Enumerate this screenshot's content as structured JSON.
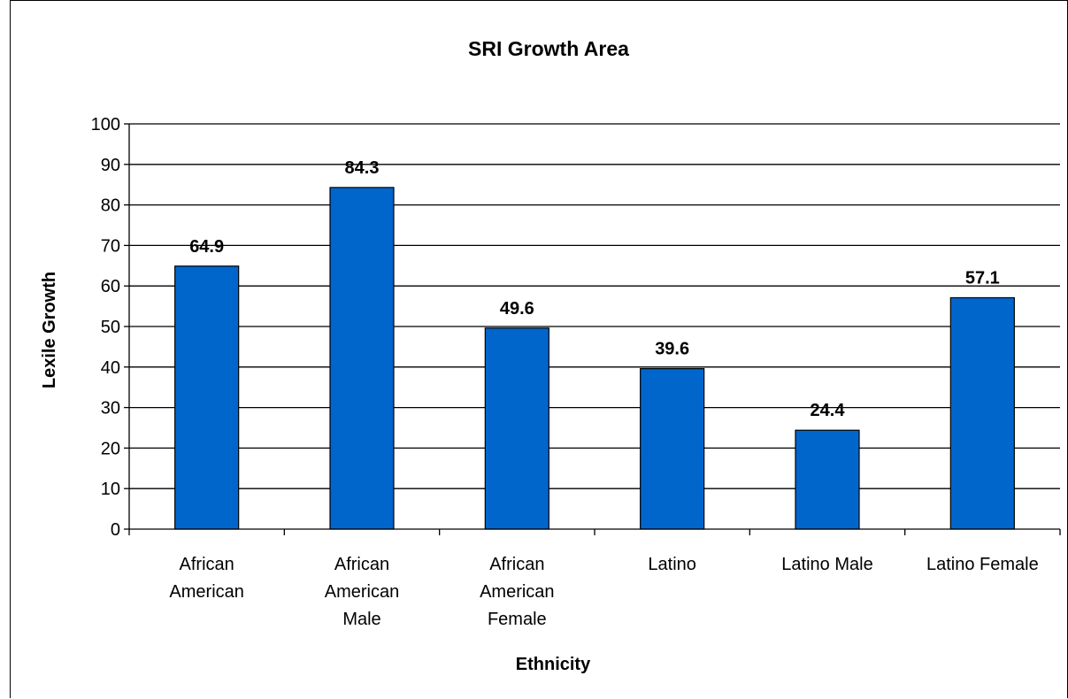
{
  "chart_data": {
    "type": "bar",
    "title": "SRI Growth Area",
    "xlabel": "Ethnicity",
    "ylabel": "Lexile Growth",
    "categories": [
      [
        "African",
        "American"
      ],
      [
        "African",
        "American",
        "Male"
      ],
      [
        "African",
        "American",
        "Female"
      ],
      [
        "Latino"
      ],
      [
        "Latino Male"
      ],
      [
        "Latino Female"
      ]
    ],
    "values": [
      64.9,
      84.3,
      49.6,
      39.6,
      24.4,
      57.1
    ],
    "data_labels": [
      "64.9",
      "84.3",
      "49.6",
      "39.6",
      "24.4",
      "57.1"
    ],
    "ylim": [
      0,
      100
    ],
    "yticks": [
      0,
      10,
      20,
      30,
      40,
      50,
      60,
      70,
      80,
      90,
      100
    ],
    "grid": true,
    "legend": "none",
    "colors": {
      "bar_fill": "#0066CC",
      "bar_stroke": "#000000",
      "grid": "#000000",
      "background": "#FFFFFF"
    }
  }
}
